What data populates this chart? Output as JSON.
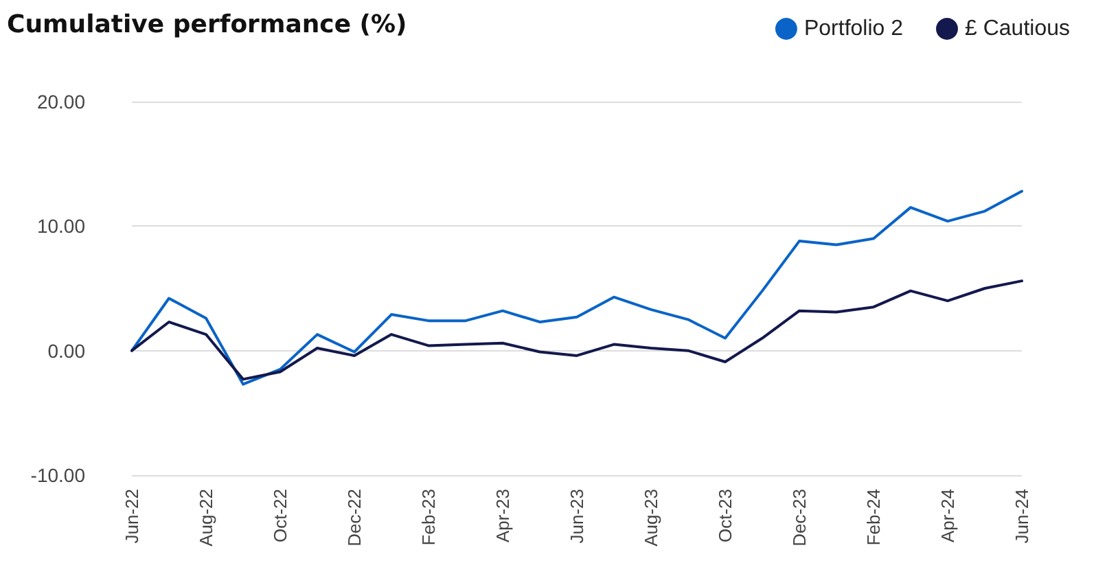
{
  "chart_data": {
    "type": "line",
    "title": "Cumulative performance (%)",
    "categories": [
      "Jun-22",
      null,
      "Aug-22",
      null,
      "Oct-22",
      null,
      "Dec-22",
      null,
      "Feb-23",
      null,
      "Apr-23",
      null,
      "Jun-23",
      null,
      "Aug-23",
      null,
      "Oct-23",
      null,
      "Dec-23",
      null,
      "Feb-24",
      null,
      "Apr-24",
      null,
      "Jun-24"
    ],
    "series": [
      {
        "name": "Portfolio 2",
        "color": "#0a64c8",
        "values": [
          0,
          4.2,
          2.6,
          -2.7,
          -1.5,
          1.3,
          -0.1,
          2.9,
          2.4,
          2.4,
          3.2,
          2.3,
          2.7,
          4.3,
          3.3,
          2.5,
          1.0,
          4.8,
          8.8,
          8.5,
          9.0,
          11.5,
          10.4,
          11.2,
          12.8
        ]
      },
      {
        "name": "£ Cautious",
        "color": "#13194d",
        "values": [
          0,
          2.3,
          1.3,
          -2.3,
          -1.7,
          0.2,
          -0.4,
          1.3,
          0.4,
          0.5,
          0.6,
          -0.1,
          -0.4,
          0.5,
          0.2,
          0.0,
          -0.9,
          1.0,
          3.2,
          3.1,
          3.5,
          4.8,
          4.0,
          5.0,
          5.6
        ]
      }
    ],
    "ylim": [
      -10,
      20
    ],
    "yticks": [
      {
        "value": -10,
        "label": "-10.00"
      },
      {
        "value": 0,
        "label": "0.00"
      },
      {
        "value": 10,
        "label": "10.00"
      },
      {
        "value": 20,
        "label": "20.00"
      }
    ],
    "grid": "y",
    "legend": "top right",
    "marker": "none",
    "line_style": "solid"
  }
}
